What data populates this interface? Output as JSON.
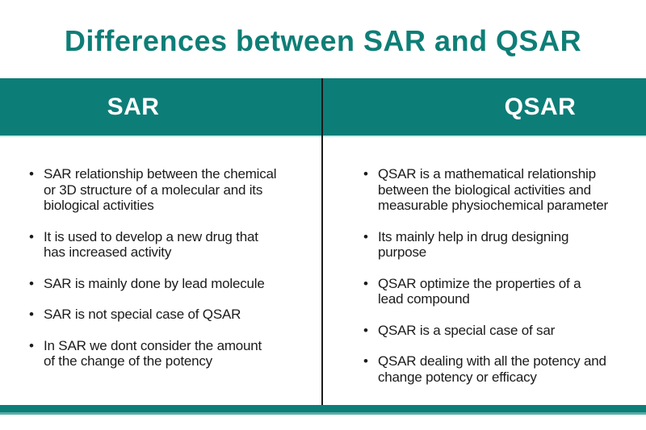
{
  "title": "Differences between SAR and QSAR",
  "theme": {
    "teal": "#0d7d78",
    "title_color": "#0e7e77",
    "header_text_color": "#ffffff",
    "body_text_color": "#1b1b1b",
    "divider_color": "#1a1a1a",
    "light_edge_color": "#c9ebe9",
    "bottom_bar_edge_color": "#5aaca7"
  },
  "table": {
    "columns": [
      {
        "header": "SAR",
        "bullets": [
          [
            "SAR relationship between the chemical",
            "or 3D structure of a molecular and its",
            "biological activities"
          ],
          [
            "It is used to develop a new drug that",
            "has increased activity"
          ],
          [
            "SAR is mainly done by lead molecule"
          ],
          [
            "SAR is not special case of QSAR"
          ],
          [
            "In SAR we dont consider the amount",
            "of the change of the potency"
          ]
        ]
      },
      {
        "header": "QSAR",
        "bullets": [
          [
            "QSAR is a mathematical relationship",
            "between the biological activities and",
            "measurable physiochemical parameter"
          ],
          [
            "Its mainly help in drug designing",
            "purpose"
          ],
          [
            "QSAR optimize the properties of a",
            "lead compound"
          ],
          [
            "QSAR is a special case of sar"
          ],
          [
            "QSAR dealing with all the potency and",
            "change potency or efficacy"
          ]
        ]
      }
    ]
  },
  "bullet_glyph": "•"
}
